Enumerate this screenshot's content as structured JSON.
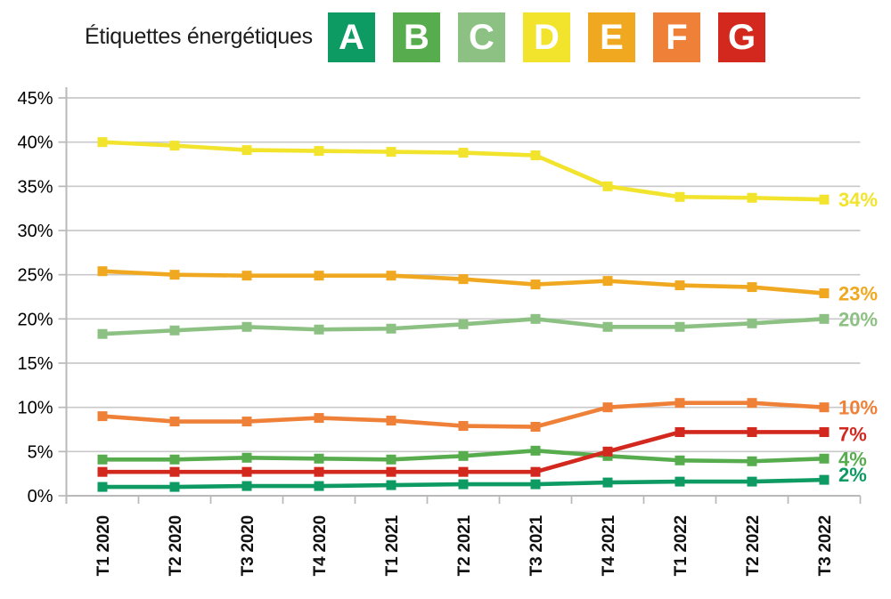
{
  "header": {
    "title": "Étiquettes énergétiques",
    "legend": [
      {
        "letter": "A",
        "color": "#0d9b63"
      },
      {
        "letter": "B",
        "color": "#57ac4e"
      },
      {
        "letter": "C",
        "color": "#8cc183"
      },
      {
        "letter": "D",
        "color": "#f2e32c"
      },
      {
        "letter": "E",
        "color": "#efa81f"
      },
      {
        "letter": "F",
        "color": "#ee8038"
      },
      {
        "letter": "G",
        "color": "#d2281e"
      }
    ]
  },
  "chart_data": {
    "type": "line",
    "title": "Étiquettes énergétiques",
    "xlabel": "",
    "ylabel": "",
    "grid": true,
    "legend_position": "top",
    "marker": "square",
    "categories": [
      "T1 2020",
      "T2 2020",
      "T3 2020",
      "T4 2020",
      "T1 2021",
      "T2 2021",
      "T3 2021",
      "T4 2021",
      "T1 2022",
      "T2 2022",
      "T3 2022"
    ],
    "ylim": [
      0,
      45
    ],
    "ytick_step": 5,
    "ytick_labels": [
      "0%",
      "5%",
      "10%",
      "15%",
      "20%",
      "25%",
      "30%",
      "35%",
      "40%",
      "45%"
    ],
    "axis_color": "#b9b9b9",
    "grid_color": "#c9c9c9",
    "series": [
      {
        "label": "D",
        "color": "#f2e32c",
        "end_label": "34%",
        "label_dy": 0,
        "values": [
          40.0,
          39.6,
          39.1,
          39.0,
          38.9,
          38.8,
          38.5,
          35.0,
          33.8,
          33.7,
          33.5
        ]
      },
      {
        "label": "E",
        "color": "#efa81f",
        "end_label": "23%",
        "label_dy": 0,
        "values": [
          25.4,
          25.0,
          24.9,
          24.9,
          24.9,
          24.5,
          23.9,
          24.3,
          23.8,
          23.6,
          22.9
        ]
      },
      {
        "label": "C",
        "color": "#8cc183",
        "end_label": "20%",
        "label_dy": 0,
        "values": [
          18.3,
          18.7,
          19.1,
          18.8,
          18.9,
          19.4,
          20.0,
          19.1,
          19.1,
          19.5,
          20.0
        ]
      },
      {
        "label": "F",
        "color": "#ee8038",
        "end_label": "10%",
        "label_dy": 0,
        "values": [
          9.0,
          8.4,
          8.4,
          8.8,
          8.5,
          7.9,
          7.8,
          10.0,
          10.5,
          10.5,
          10.0
        ]
      },
      {
        "label": "B",
        "color": "#57ac4e",
        "end_label": "4%",
        "label_dy": 0,
        "values": [
          4.1,
          4.1,
          4.3,
          4.2,
          4.1,
          4.5,
          5.1,
          4.5,
          4.0,
          3.9,
          4.2
        ]
      },
      {
        "label": "G",
        "color": "#d2281e",
        "end_label": "7%",
        "label_dy": 2,
        "values": [
          2.7,
          2.7,
          2.7,
          2.7,
          2.7,
          2.7,
          2.7,
          5.0,
          7.2,
          7.2,
          7.2
        ]
      },
      {
        "label": "A",
        "color": "#0d9b63",
        "end_label": "2%",
        "label_dy": -6,
        "values": [
          1.0,
          1.0,
          1.1,
          1.1,
          1.2,
          1.3,
          1.3,
          1.5,
          1.6,
          1.6,
          1.8
        ]
      }
    ]
  }
}
